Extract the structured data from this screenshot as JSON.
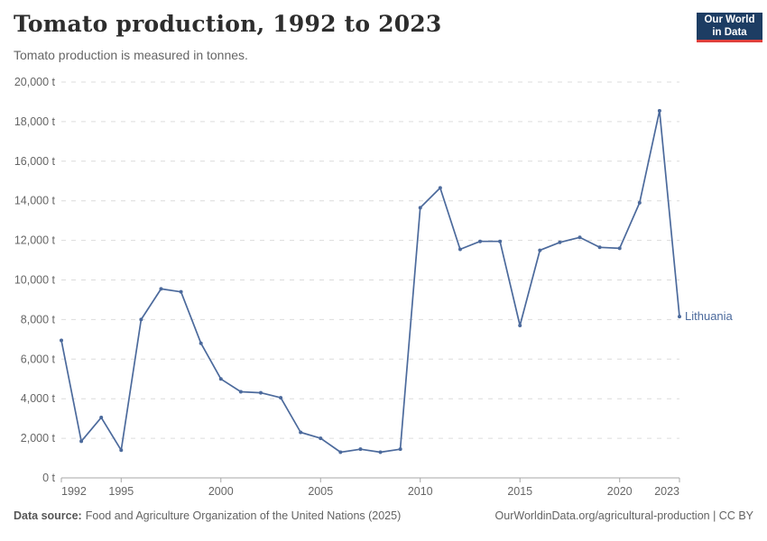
{
  "header": {
    "title": "Tomato production, 1992 to 2023",
    "subtitle": "Tomato production is measured in tonnes.",
    "logo": {
      "line1": "Our World",
      "line2": "in Data"
    }
  },
  "chart_data": {
    "type": "line",
    "title": "Tomato production, 1992 to 2023",
    "ylabel": "tonnes",
    "xlabel": "",
    "unit_suffix": " t",
    "xlim": [
      1992,
      2023
    ],
    "ylim": [
      0,
      20000
    ],
    "xticks": [
      1992,
      1995,
      2000,
      2005,
      2010,
      2015,
      2020,
      2023
    ],
    "yticks": [
      0,
      2000,
      4000,
      6000,
      8000,
      10000,
      12000,
      14000,
      16000,
      18000,
      20000
    ],
    "grid": "horizontal-dashed",
    "legend_position": "end-of-line-label",
    "x": [
      1992,
      1993,
      1994,
      1995,
      1996,
      1997,
      1998,
      1999,
      2000,
      2001,
      2002,
      2003,
      2004,
      2005,
      2006,
      2007,
      2008,
      2009,
      2010,
      2011,
      2012,
      2013,
      2014,
      2015,
      2016,
      2017,
      2018,
      2019,
      2020,
      2021,
      2022,
      2023
    ],
    "series": [
      {
        "name": "Lithuania",
        "color": "#4c6a9c",
        "values": [
          6950,
          1850,
          3050,
          1400,
          8000,
          9550,
          9400,
          6800,
          5000,
          4350,
          4300,
          4050,
          2300,
          2000,
          1300,
          1450,
          1300,
          1450,
          13650,
          14650,
          11550,
          11950,
          11950,
          7700,
          11500,
          11900,
          12150,
          11650,
          11600,
          13900,
          18550,
          8150
        ]
      }
    ]
  },
  "footer": {
    "source_label": "Data source:",
    "source_text": "Food and Agriculture Organization of the United Nations (2025)",
    "credit": "OurWorldinData.org/agricultural-production | CC BY"
  },
  "colors": {
    "line": "#4c6a9c",
    "grid": "#dcdcdc",
    "axis": "#a7a7a7",
    "tick_label": "#666666",
    "logo_bg": "#1d3d63",
    "logo_red": "#e0403c"
  }
}
